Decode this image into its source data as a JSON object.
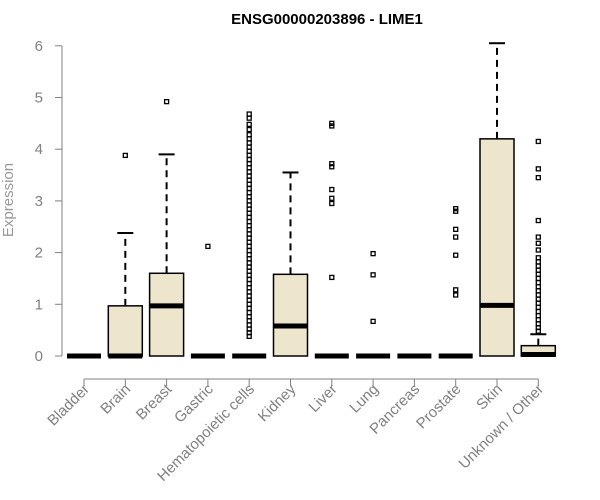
{
  "chart_data": {
    "type": "boxplot",
    "title": "ENSG00000203896 - LIME1",
    "xlabel": "",
    "ylabel": "Expression",
    "ylim": [
      0,
      6.2
    ],
    "yticks": [
      0,
      1,
      2,
      3,
      4,
      5,
      6
    ],
    "grid": false,
    "legend": "none",
    "box_fill": "#ede6cc",
    "box_stroke": "#000000",
    "axis_color": "#808080",
    "categories": [
      "Bladder",
      "Brain",
      "Breast",
      "Gastric",
      "Hematopoietic cells",
      "Kidney",
      "Liver",
      "Lung",
      "Pancreas",
      "Prostate",
      "Skin",
      "Unknown / Other"
    ],
    "boxes": [
      {
        "q1": 0,
        "median": 0,
        "q3": 0,
        "whisker_low": 0,
        "whisker_high": 0,
        "outliers": []
      },
      {
        "q1": 0,
        "median": 0,
        "q3": 0.97,
        "whisker_low": 0,
        "whisker_high": 2.38,
        "outliers": [
          3.88
        ]
      },
      {
        "q1": 0,
        "median": 0.97,
        "q3": 1.6,
        "whisker_low": 0,
        "whisker_high": 3.9,
        "outliers": [
          4.92
        ]
      },
      {
        "q1": 0,
        "median": 0,
        "q3": 0,
        "whisker_low": 0,
        "whisker_high": 0,
        "outliers": [
          2.12
        ]
      },
      {
        "q1": 0,
        "median": 0,
        "q3": 0,
        "whisker_low": 0,
        "whisker_high": 0,
        "outliers": [
          0.38,
          0.45,
          0.52,
          0.6,
          0.68,
          0.76,
          0.84,
          0.92,
          1.0,
          1.08,
          1.16,
          1.24,
          1.32,
          1.4,
          1.48,
          1.56,
          1.64,
          1.72,
          1.8,
          1.88,
          1.96,
          2.04,
          2.12,
          2.2,
          2.28,
          2.36,
          2.44,
          2.52,
          2.6,
          2.68,
          2.76,
          2.84,
          2.92,
          3.0,
          3.08,
          3.16,
          3.24,
          3.32,
          3.4,
          3.48,
          3.56,
          3.64,
          3.72,
          3.8,
          3.88,
          3.96,
          4.04,
          4.12,
          4.2,
          4.28,
          4.38,
          4.48,
          4.6,
          4.68
        ]
      },
      {
        "q1": 0,
        "median": 0.58,
        "q3": 1.58,
        "whisker_low": 0,
        "whisker_high": 3.55,
        "outliers": []
      },
      {
        "q1": 0,
        "median": 0,
        "q3": 0,
        "whisker_low": 0,
        "whisker_high": 0,
        "outliers": [
          1.52,
          2.95,
          3.05,
          3.22,
          3.66,
          3.72,
          4.45,
          4.5
        ]
      },
      {
        "q1": 0,
        "median": 0,
        "q3": 0,
        "whisker_low": 0,
        "whisker_high": 0,
        "outliers": [
          0.67,
          1.57,
          1.98
        ]
      },
      {
        "q1": 0,
        "median": 0,
        "q3": 0,
        "whisker_low": 0,
        "whisker_high": 0,
        "outliers": []
      },
      {
        "q1": 0,
        "median": 0,
        "q3": 0,
        "whisker_low": 0,
        "whisker_high": 0,
        "outliers": [
          1.18,
          1.28,
          1.95,
          2.3,
          2.45,
          2.8,
          2.85
        ]
      },
      {
        "q1": 0,
        "median": 0.98,
        "q3": 4.2,
        "whisker_low": 0,
        "whisker_high": 6.05,
        "outliers": []
      },
      {
        "q1": 0,
        "median": 0.03,
        "q3": 0.2,
        "whisker_low": 0,
        "whisker_high": 0.42,
        "outliers": [
          0.48,
          0.55,
          0.62,
          0.7,
          0.78,
          0.86,
          0.94,
          1.02,
          1.1,
          1.18,
          1.26,
          1.34,
          1.42,
          1.5,
          1.58,
          1.66,
          1.74,
          1.82,
          1.9,
          2.05,
          2.18,
          2.3,
          2.62,
          3.45,
          3.62,
          4.15
        ]
      }
    ]
  }
}
